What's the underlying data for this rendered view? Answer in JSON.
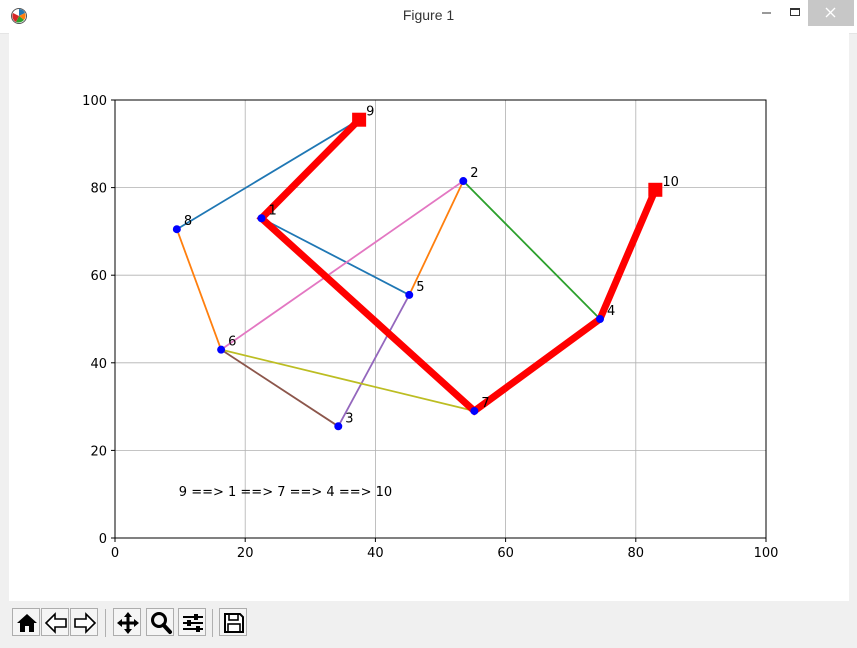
{
  "window": {
    "title": "Figure 1",
    "buttons": [
      "minimize",
      "maximize",
      "close"
    ]
  },
  "toolbar": {
    "buttons": [
      {
        "name": "home-button",
        "icon": "home-icon"
      },
      {
        "name": "back-button",
        "icon": "arrow-left-icon"
      },
      {
        "name": "forward-button",
        "icon": "arrow-right-icon"
      },
      {
        "name": "pan-button",
        "icon": "move-icon"
      },
      {
        "name": "zoom-button",
        "icon": "magnifier-icon"
      },
      {
        "name": "configure-subplots-button",
        "icon": "sliders-icon"
      },
      {
        "name": "save-button",
        "icon": "floppy-disk-icon"
      }
    ]
  },
  "chart_data": {
    "type": "scatter",
    "xlim": [
      0,
      100
    ],
    "ylim": [
      0,
      100
    ],
    "xticks": [
      0,
      20,
      40,
      60,
      80,
      100
    ],
    "yticks": [
      0,
      20,
      40,
      60,
      80,
      100
    ],
    "grid": true,
    "nodes": [
      {
        "id": "1",
        "x": 22.5,
        "y": 73
      },
      {
        "id": "2",
        "x": 53.5,
        "y": 81.5
      },
      {
        "id": "3",
        "x": 34.3,
        "y": 25.5
      },
      {
        "id": "4",
        "x": 74.5,
        "y": 50
      },
      {
        "id": "5",
        "x": 45.2,
        "y": 55.5
      },
      {
        "id": "6",
        "x": 16.3,
        "y": 43
      },
      {
        "id": "7",
        "x": 55.2,
        "y": 29
      },
      {
        "id": "8",
        "x": 9.5,
        "y": 70.5
      },
      {
        "id": "9",
        "x": 37.5,
        "y": 95.5
      },
      {
        "id": "10",
        "x": 83,
        "y": 79.5
      }
    ],
    "edges": [
      {
        "from": "8",
        "to": "9",
        "color": "#1f77b4"
      },
      {
        "from": "1",
        "to": "5",
        "color": "#1f77b4"
      },
      {
        "from": "8",
        "to": "6",
        "color": "#ff7f0e"
      },
      {
        "from": "5",
        "to": "2",
        "color": "#ff7f0e"
      },
      {
        "from": "2",
        "to": "4",
        "color": "#2ca02c"
      },
      {
        "from": "6",
        "to": "2",
        "color": "#e377c2"
      },
      {
        "from": "3",
        "to": "5",
        "color": "#9467bd"
      },
      {
        "from": "6",
        "to": "3",
        "color": "#8c564b"
      },
      {
        "from": "6",
        "to": "7",
        "color": "#bcbd22"
      }
    ],
    "path": [
      "9",
      "1",
      "7",
      "4",
      "10"
    ],
    "path_color": "#ff0000",
    "endpoints": [
      "9",
      "10"
    ],
    "node_color": "#0000ff",
    "annotation": {
      "text": "9 ==> 1 ==> 7 ==> 4 ==> 10",
      "x": 9.8,
      "y": 10.5
    }
  }
}
